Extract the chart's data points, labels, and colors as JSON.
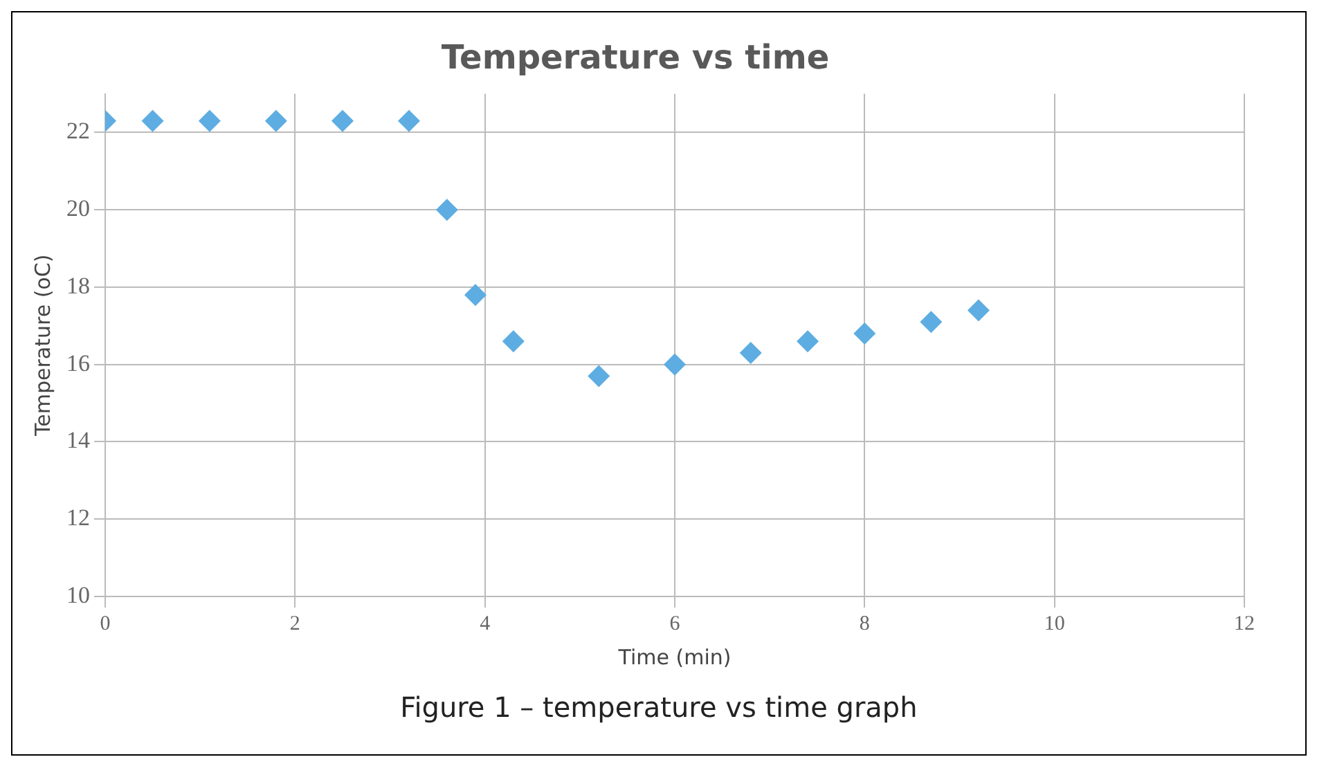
{
  "chart_data": {
    "type": "scatter",
    "title": "Temperature vs time",
    "xlabel": "Time (min)",
    "ylabel": "Temperature (oC)",
    "annotations": [
      "Figure 1 – temperature vs time graph"
    ],
    "x": [
      0,
      0.5,
      1.1,
      1.8,
      2.5,
      3.2,
      3.6,
      3.9,
      4.3,
      5.2,
      6.0,
      6.8,
      7.4,
      8.0,
      8.7,
      9.2
    ],
    "series": [
      {
        "color": "#5dade2",
        "values": [
          22.3,
          22.3,
          22.3,
          22.3,
          22.3,
          22.3,
          20.0,
          17.8,
          16.6,
          15.7,
          16.0,
          16.3,
          16.6,
          16.8,
          17.1,
          17.4
        ]
      }
    ],
    "xlim": [
      0,
      12
    ],
    "xticks": [
      0,
      2,
      4,
      6,
      8,
      10,
      12
    ],
    "ylim": [
      10,
      23
    ],
    "yticks": [
      10,
      12,
      14,
      16,
      18,
      20,
      22
    ],
    "grid": true,
    "legend": false,
    "marker": "diamond"
  }
}
